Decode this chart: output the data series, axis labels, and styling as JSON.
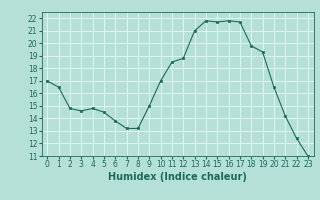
{
  "x": [
    0,
    1,
    2,
    3,
    4,
    5,
    6,
    7,
    8,
    9,
    10,
    11,
    12,
    13,
    14,
    15,
    16,
    17,
    18,
    19,
    20,
    21,
    22,
    23
  ],
  "y": [
    17,
    16.5,
    14.8,
    14.6,
    14.8,
    14.5,
    13.8,
    13.2,
    13.2,
    15.0,
    17.0,
    18.5,
    18.8,
    21.0,
    21.8,
    21.7,
    21.8,
    21.7,
    19.8,
    19.3,
    16.5,
    14.2,
    12.4,
    11.0
  ],
  "title": "",
  "xlabel": "Humidex (Indice chaleur)",
  "ylabel": "",
  "ylim": [
    11,
    22.5
  ],
  "xlim": [
    -0.5,
    23.5
  ],
  "yticks": [
    11,
    12,
    13,
    14,
    15,
    16,
    17,
    18,
    19,
    20,
    21,
    22
  ],
  "xticks": [
    0,
    1,
    2,
    3,
    4,
    5,
    6,
    7,
    8,
    9,
    10,
    11,
    12,
    13,
    14,
    15,
    16,
    17,
    18,
    19,
    20,
    21,
    22,
    23
  ],
  "xtick_labels": [
    "0",
    "1",
    "2",
    "3",
    "4",
    "5",
    "6",
    "7",
    "8",
    "9",
    "10",
    "11",
    "12",
    "13",
    "14",
    "15",
    "16",
    "17",
    "18",
    "19",
    "20",
    "21",
    "22",
    "23"
  ],
  "line_color": "#1a6b5a",
  "marker_color": "#1a6b5a",
  "bg_color": "#b5e0d8",
  "grid_color": "#e8f8f5",
  "xlabel_fontsize": 7,
  "tick_fontsize": 5.5
}
